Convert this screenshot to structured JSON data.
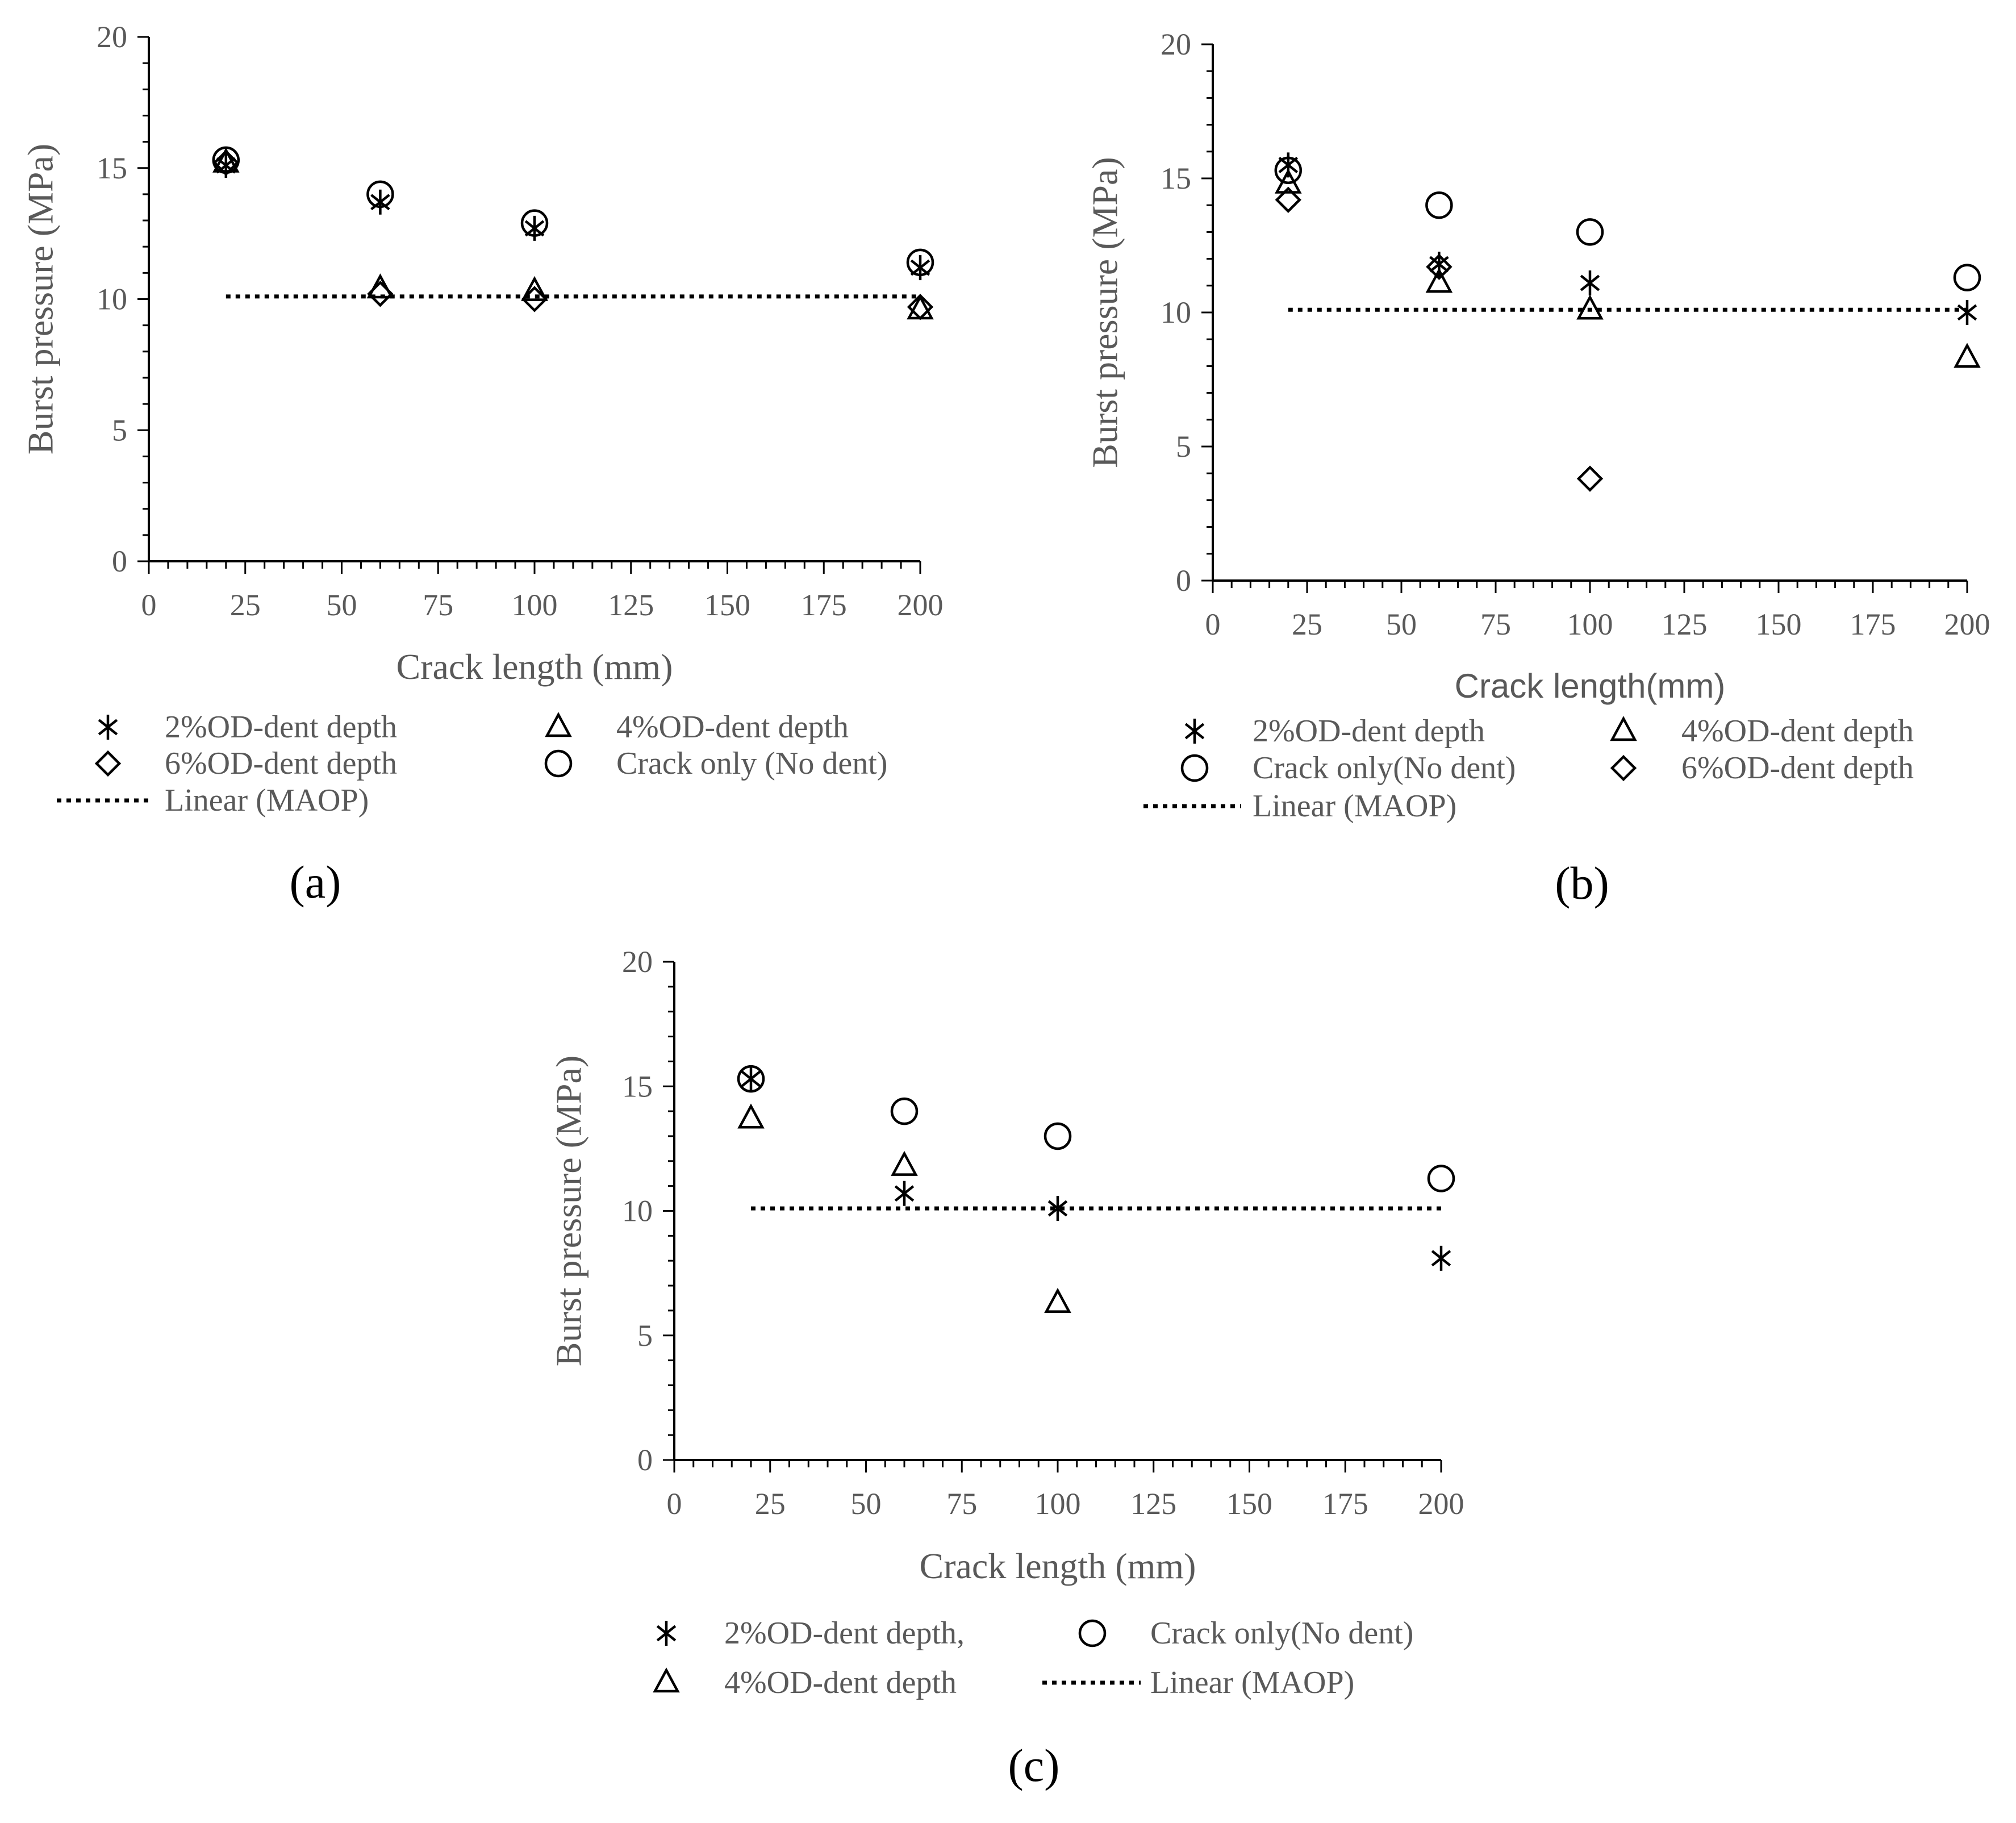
{
  "chart_data": [
    {
      "type": "scatter",
      "panel_label": "(a)",
      "xlabel": "Crack length (mm)",
      "ylabel": "Burst pressure (MPa)",
      "xlim": [
        0,
        200
      ],
      "ylim": [
        0,
        20
      ],
      "xticks": [
        "0",
        "25",
        "50",
        "75",
        "100",
        "125",
        "150",
        "175",
        "200"
      ],
      "yticks": [
        "0",
        "5",
        "10",
        "15",
        "20"
      ],
      "series": [
        {
          "name": "2%OD-dent depth",
          "marker": "asterisk",
          "x": [
            20,
            60,
            100,
            200
          ],
          "y": [
            15.1,
            13.7,
            12.7,
            11.2
          ]
        },
        {
          "name": "4%OD-dent depth",
          "marker": "triangle",
          "x": [
            20,
            60,
            100,
            200
          ],
          "y": [
            15.2,
            10.4,
            10.3,
            9.6
          ]
        },
        {
          "name": "6%OD-dent depth",
          "marker": "diamond",
          "x": [
            20,
            60,
            100,
            200
          ],
          "y": [
            15.2,
            10.2,
            10.0,
            9.7
          ]
        },
        {
          "name": "Crack only (No dent)",
          "marker": "circle",
          "x": [
            20,
            60,
            100,
            200
          ],
          "y": [
            15.3,
            14.0,
            12.9,
            11.4
          ]
        }
      ],
      "maop": {
        "name": "Linear (MAOP)",
        "y": 10.1,
        "x_start": 20,
        "x_end": 200
      },
      "legend": [
        {
          "marker": "asterisk",
          "label": "2%OD-dent depth"
        },
        {
          "marker": "triangle",
          "label": "4%OD-dent depth"
        },
        {
          "marker": "diamond",
          "label": "6%OD-dent depth"
        },
        {
          "marker": "circle",
          "label": "Crack only (No dent)"
        },
        {
          "marker": "dotted",
          "label": "Linear (MAOP)"
        }
      ]
    },
    {
      "type": "scatter",
      "panel_label": "(b)",
      "xlabel": "Crack length(mm)",
      "ylabel": "Burst pressure (MPa)",
      "xlim": [
        0,
        200
      ],
      "ylim": [
        0,
        20
      ],
      "xticks": [
        "0",
        "25",
        "50",
        "75",
        "100",
        "125",
        "150",
        "175",
        "200"
      ],
      "yticks": [
        "0",
        "5",
        "10",
        "15",
        "20"
      ],
      "series": [
        {
          "name": "2%OD-dent depth",
          "marker": "asterisk",
          "x": [
            20,
            60,
            100,
            200
          ],
          "y": [
            15.5,
            11.8,
            11.1,
            10.0
          ]
        },
        {
          "name": "4%OD-dent depth",
          "marker": "triangle",
          "x": [
            20,
            60,
            100,
            200
          ],
          "y": [
            14.8,
            11.1,
            10.1,
            8.3
          ]
        },
        {
          "name": "Crack only(No dent)",
          "marker": "circle",
          "x": [
            20,
            60,
            100,
            200
          ],
          "y": [
            15.3,
            14.0,
            13.0,
            11.3
          ]
        },
        {
          "name": "6%OD-dent depth",
          "marker": "diamond",
          "x": [
            20,
            60,
            100
          ],
          "y": [
            14.2,
            11.7,
            3.8
          ]
        }
      ],
      "maop": {
        "name": "Linear (MAOP)",
        "y": 10.1,
        "x_start": 20,
        "x_end": 200
      },
      "legend": [
        {
          "marker": "asterisk",
          "label": "2%OD-dent depth"
        },
        {
          "marker": "triangle",
          "label": "4%OD-dent depth"
        },
        {
          "marker": "circle",
          "label": "Crack only(No dent)"
        },
        {
          "marker": "diamond",
          "label": "6%OD-dent depth"
        },
        {
          "marker": "dotted",
          "label": "Linear (MAOP)"
        }
      ]
    },
    {
      "type": "scatter",
      "panel_label": "(c)",
      "xlabel": "Crack length (mm)",
      "ylabel": "Burst pressure (MPa)",
      "xlim": [
        0,
        200
      ],
      "ylim": [
        0,
        20
      ],
      "xticks": [
        "0",
        "25",
        "50",
        "75",
        "100",
        "125",
        "150",
        "175",
        "200"
      ],
      "yticks": [
        "0",
        "5",
        "10",
        "15",
        "20"
      ],
      "series": [
        {
          "name": "2%OD-dent depth,",
          "marker": "asterisk",
          "x": [
            20,
            60,
            100,
            200
          ],
          "y": [
            15.3,
            10.7,
            10.1,
            8.1
          ]
        },
        {
          "name": "4%OD-dent depth",
          "marker": "triangle",
          "x": [
            20,
            60,
            100
          ],
          "y": [
            13.7,
            11.8,
            6.3
          ]
        },
        {
          "name": "Crack only(No dent)",
          "marker": "circle",
          "x": [
            20,
            60,
            100,
            200
          ],
          "y": [
            15.3,
            14.0,
            13.0,
            11.3
          ]
        }
      ],
      "maop": {
        "name": "Linear (MAOP)",
        "y": 10.1,
        "x_start": 20,
        "x_end": 200
      },
      "legend": [
        {
          "marker": "asterisk",
          "label": "2%OD-dent depth,"
        },
        {
          "marker": "circle",
          "label": "Crack only(No dent)"
        },
        {
          "marker": "triangle",
          "label": "4%OD-dent depth"
        },
        {
          "marker": "dotted",
          "label": "Linear (MAOP)"
        }
      ]
    }
  ]
}
